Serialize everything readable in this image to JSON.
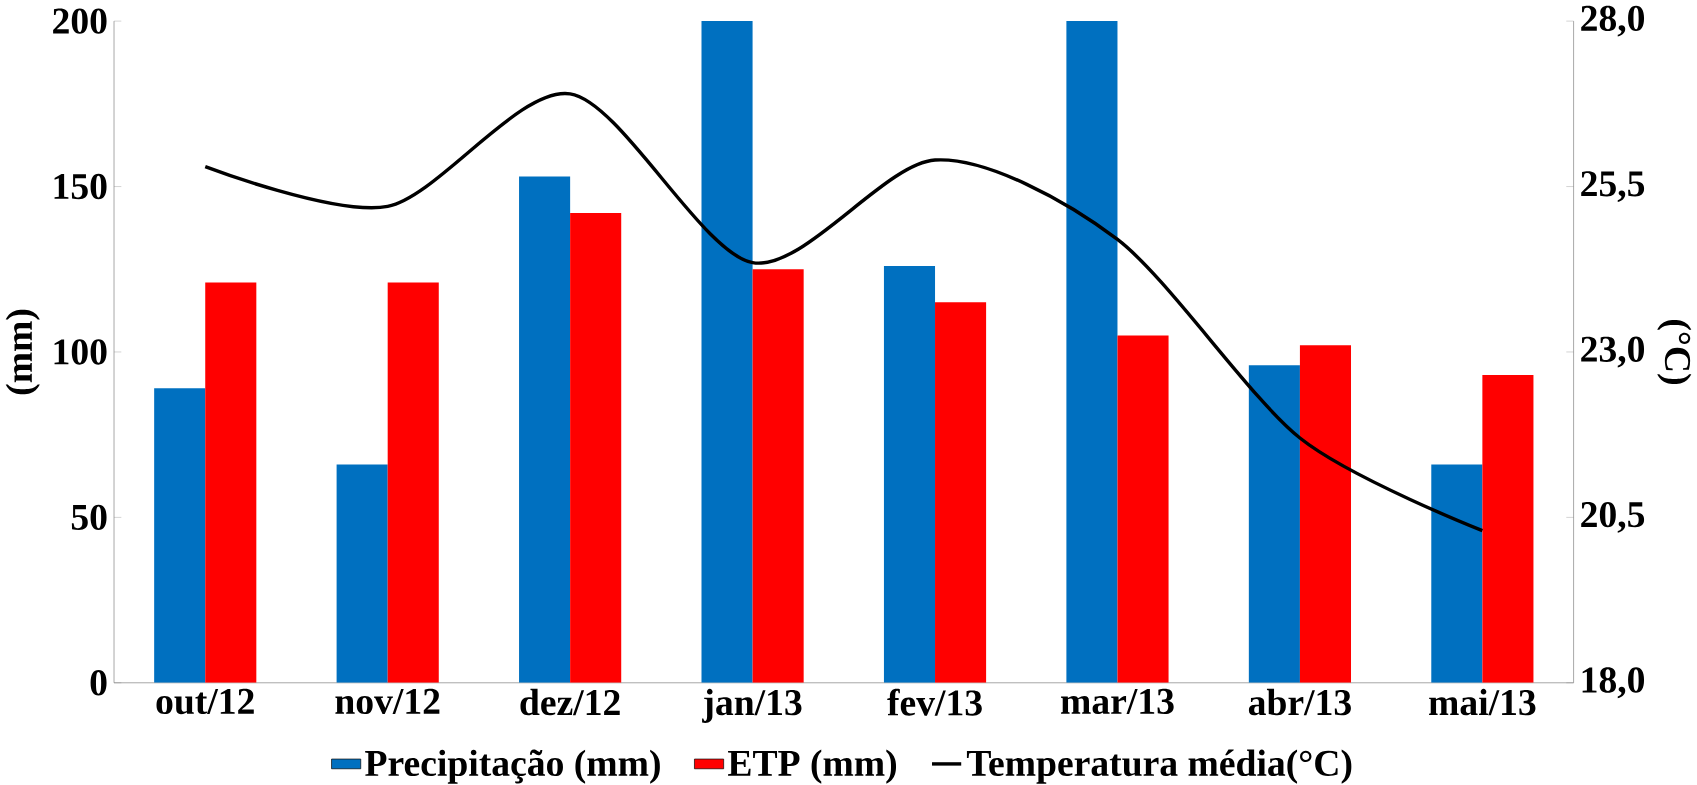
{
  "chart_data": {
    "type": "bar",
    "ylabel": "(mm)",
    "y2label": "(°C)",
    "categories": [
      "out/12",
      "nov/12",
      "dez/12",
      "jan/13",
      "fev/13",
      "mar/13",
      "abr/13",
      "mai/13"
    ],
    "series": [
      {
        "name": "Precipitação (mm)",
        "color": "#0070c0",
        "values": [
          89,
          66,
          153,
          200,
          126,
          200,
          96,
          66
        ]
      },
      {
        "name": "ETP (mm)",
        "color": "#ff0000",
        "values": [
          121,
          121,
          142,
          125,
          115,
          105,
          102,
          93
        ]
      },
      {
        "name": "Temperatura média(°C)",
        "type": "line",
        "axis": "y2",
        "color": "#000000",
        "line_style": "solid",
        "values": [
          25.8,
          25.2,
          26.9,
          24.35,
          25.9,
          24.7,
          21.7,
          20.3
        ]
      }
    ],
    "ylim": [
      0,
      200
    ],
    "yticks": [
      0,
      50,
      100,
      150,
      200
    ],
    "y2lim": [
      18,
      28
    ],
    "y2ticks": [
      {
        "value": 18,
        "label": "18,0"
      },
      {
        "value": 20.5,
        "label": "20,5"
      },
      {
        "value": 23,
        "label": "23,0"
      },
      {
        "value": 25.5,
        "label": "25,5"
      },
      {
        "value": 28,
        "label": "28,0"
      }
    ],
    "grid": false,
    "legend": "bottom",
    "marker": "none"
  }
}
